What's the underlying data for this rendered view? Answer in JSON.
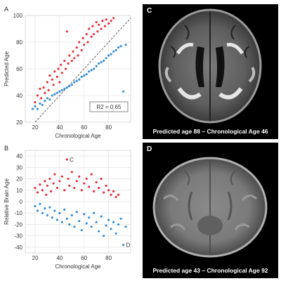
{
  "panels": {
    "A": {
      "letter": "A",
      "r2_label": "R2 = 0.65"
    },
    "B": {
      "letter": "B",
      "point_c_label": "C",
      "point_d_label": "D"
    },
    "C": {
      "letter": "C",
      "caption": "Predicted age 88 – Chronological Age 46"
    },
    "D": {
      "letter": "D",
      "caption": "Predicted age 43 – Chronological Age 92"
    }
  },
  "colors": {
    "above": "#e8303a",
    "below": "#3a8fd0",
    "grid": "#dddddd"
  },
  "chart_data": [
    {
      "type": "scatter",
      "title": "",
      "xlabel": "Chronological Age",
      "ylabel": "Predicted Age",
      "xlim": [
        12,
        98
      ],
      "ylim": [
        20,
        100
      ],
      "xticks": [
        20,
        40,
        60,
        80
      ],
      "yticks": [
        20,
        40,
        60,
        80,
        100
      ],
      "grid": true,
      "reference_line": "identity (dashed)",
      "annotation": "R2 = 0.65",
      "series": [
        {
          "color": "#e8303a",
          "points": [
            [
              20,
              35
            ],
            [
              22,
              40
            ],
            [
              24,
              45
            ],
            [
              25,
              38
            ],
            [
              27,
              46
            ],
            [
              28,
              42
            ],
            [
              30,
              50
            ],
            [
              31,
              44
            ],
            [
              32,
              55
            ],
            [
              34,
              52
            ],
            [
              35,
              48
            ],
            [
              36,
              58
            ],
            [
              38,
              54
            ],
            [
              39,
              60
            ],
            [
              40,
              50
            ],
            [
              41,
              63
            ],
            [
              42,
              57
            ],
            [
              44,
              66
            ],
            [
              45,
              60
            ],
            [
              46,
              88
            ],
            [
              47,
              64
            ],
            [
              48,
              70
            ],
            [
              50,
              66
            ],
            [
              51,
              73
            ],
            [
              52,
              68
            ],
            [
              54,
              76
            ],
            [
              55,
              70
            ],
            [
              56,
              80
            ],
            [
              58,
              74
            ],
            [
              59,
              83
            ],
            [
              60,
              78
            ],
            [
              62,
              86
            ],
            [
              63,
              80
            ],
            [
              64,
              90
            ],
            [
              66,
              84
            ],
            [
              67,
              92
            ],
            [
              68,
              86
            ],
            [
              70,
              95
            ],
            [
              71,
              88
            ],
            [
              72,
              93
            ],
            [
              74,
              90
            ],
            [
              75,
              96
            ],
            [
              77,
              92
            ],
            [
              78,
              97
            ],
            [
              80,
              94
            ],
            [
              82,
              96
            ],
            [
              84,
              98
            ]
          ]
        },
        {
          "color": "#3a8fd0",
          "points": [
            [
              18,
              30
            ],
            [
              20,
              32
            ],
            [
              22,
              30
            ],
            [
              24,
              34
            ],
            [
              26,
              33
            ],
            [
              28,
              36
            ],
            [
              30,
              38
            ],
            [
              32,
              37
            ],
            [
              34,
              40
            ],
            [
              36,
              41
            ],
            [
              38,
              42
            ],
            [
              40,
              43
            ],
            [
              42,
              44
            ],
            [
              44,
              45
            ],
            [
              46,
              46
            ],
            [
              48,
              47
            ],
            [
              50,
              48
            ],
            [
              52,
              50
            ],
            [
              54,
              51
            ],
            [
              56,
              52
            ],
            [
              58,
              54
            ],
            [
              60,
              55
            ],
            [
              62,
              56
            ],
            [
              64,
              58
            ],
            [
              66,
              59
            ],
            [
              68,
              60
            ],
            [
              70,
              62
            ],
            [
              72,
              64
            ],
            [
              74,
              65
            ],
            [
              76,
              66
            ],
            [
              78,
              68
            ],
            [
              80,
              70
            ],
            [
              82,
              71
            ],
            [
              84,
              73
            ],
            [
              86,
              74
            ],
            [
              88,
              76
            ],
            [
              90,
              77
            ],
            [
              92,
              43
            ],
            [
              94,
              78
            ]
          ]
        }
      ]
    },
    {
      "type": "scatter",
      "title": "",
      "xlabel": "Chronological Age",
      "ylabel": "Relative Brain Age",
      "xlim": [
        12,
        98
      ],
      "ylim": [
        -45,
        45
      ],
      "xticks": [
        20,
        40,
        60,
        80
      ],
      "yticks": [
        -40,
        -30,
        -20,
        -10,
        0,
        10,
        20,
        30,
        40
      ],
      "grid": true,
      "annotations": [
        {
          "label": "C",
          "x": 46,
          "y": 37
        },
        {
          "label": "D",
          "x": 92,
          "y": -38
        }
      ],
      "series": [
        {
          "color": "#e8303a",
          "points": [
            [
              20,
              12
            ],
            [
              22,
              8
            ],
            [
              24,
              15
            ],
            [
              26,
              10
            ],
            [
              28,
              18
            ],
            [
              29,
              6
            ],
            [
              30,
              14
            ],
            [
              32,
              20
            ],
            [
              33,
              9
            ],
            [
              35,
              16
            ],
            [
              36,
              24
            ],
            [
              38,
              12
            ],
            [
              40,
              18
            ],
            [
              42,
              22
            ],
            [
              44,
              10
            ],
            [
              46,
              37
            ],
            [
              47,
              20
            ],
            [
              48,
              14
            ],
            [
              50,
              26
            ],
            [
              52,
              12
            ],
            [
              54,
              18
            ],
            [
              56,
              22
            ],
            [
              58,
              10
            ],
            [
              60,
              16
            ],
            [
              62,
              20
            ],
            [
              64,
              13
            ],
            [
              66,
              24
            ],
            [
              68,
              9
            ],
            [
              70,
              17
            ],
            [
              72,
              12
            ],
            [
              74,
              20
            ],
            [
              76,
              8
            ],
            [
              78,
              14
            ],
            [
              80,
              10
            ],
            [
              82,
              6
            ],
            [
              84,
              9
            ],
            [
              86,
              4
            ],
            [
              88,
              6
            ]
          ]
        },
        {
          "color": "#3a8fd0",
          "points": [
            [
              20,
              -4
            ],
            [
              22,
              -8
            ],
            [
              24,
              -2
            ],
            [
              26,
              -10
            ],
            [
              28,
              -6
            ],
            [
              30,
              -12
            ],
            [
              32,
              -5
            ],
            [
              34,
              -14
            ],
            [
              36,
              -8
            ],
            [
              38,
              -16
            ],
            [
              40,
              -10
            ],
            [
              42,
              -18
            ],
            [
              44,
              -7
            ],
            [
              46,
              -15
            ],
            [
              48,
              -20
            ],
            [
              50,
              -12
            ],
            [
              52,
              -22
            ],
            [
              54,
              -9
            ],
            [
              56,
              -17
            ],
            [
              58,
              -25
            ],
            [
              60,
              -11
            ],
            [
              62,
              -19
            ],
            [
              64,
              -14
            ],
            [
              66,
              -22
            ],
            [
              68,
              -10
            ],
            [
              70,
              -18
            ],
            [
              72,
              -26
            ],
            [
              74,
              -13
            ],
            [
              76,
              -30
            ],
            [
              78,
              -21
            ],
            [
              80,
              -16
            ],
            [
              82,
              -24
            ],
            [
              84,
              -18
            ],
            [
              86,
              -28
            ],
            [
              88,
              -20
            ],
            [
              90,
              -15
            ],
            [
              92,
              -38
            ],
            [
              94,
              -22
            ]
          ]
        }
      ]
    }
  ]
}
